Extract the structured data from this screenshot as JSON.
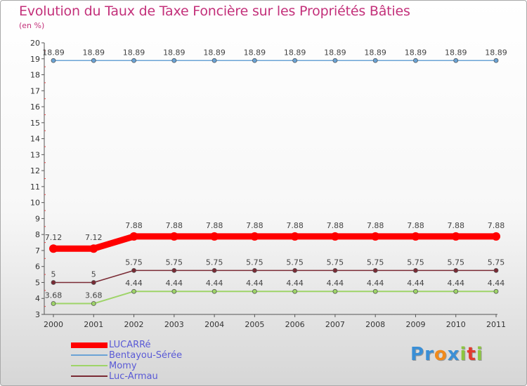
{
  "chart_data": {
    "type": "line",
    "title": "Evolution du Taux de Taxe Foncière sur les Propriétés Bâties",
    "ylabel": "(en %)",
    "xlabel": "",
    "x": [
      "2000",
      "2001",
      "2002",
      "2003",
      "2004",
      "2005",
      "2006",
      "2007",
      "2008",
      "2009",
      "2010",
      "2011"
    ],
    "ylim": [
      3,
      20
    ],
    "yticks": [
      "3",
      "4",
      "5",
      "6",
      "7",
      "8",
      "9",
      "10",
      "11",
      "12",
      "13",
      "14",
      "15",
      "16",
      "17",
      "18",
      "19",
      "20"
    ],
    "grid": false,
    "legend_position": "bottom-left",
    "series": [
      {
        "name": "Bentayou-Sérée",
        "color": "#6aa3d5",
        "values": [
          18.89,
          18.89,
          18.89,
          18.89,
          18.89,
          18.89,
          18.89,
          18.89,
          18.89,
          18.89,
          18.89,
          18.89
        ],
        "labels": [
          "18.89",
          "18.89",
          "18.89",
          "18.89",
          "18.89",
          "18.89",
          "18.89",
          "18.89",
          "18.89",
          "18.89",
          "18.89",
          "18.89"
        ]
      },
      {
        "name": "LUCARRé",
        "color": "#ff0000",
        "values": [
          7.12,
          7.12,
          7.88,
          7.88,
          7.88,
          7.88,
          7.88,
          7.88,
          7.88,
          7.88,
          7.88,
          7.88
        ],
        "labels": [
          "7.12",
          "7.12",
          "7.88",
          "7.88",
          "7.88",
          "7.88",
          "7.88",
          "7.88",
          "7.88",
          "7.88",
          "7.88",
          "7.88"
        ]
      },
      {
        "name": "Luc-Armau",
        "color": "#7a2a34",
        "values": [
          5,
          5,
          5.75,
          5.75,
          5.75,
          5.75,
          5.75,
          5.75,
          5.75,
          5.75,
          5.75,
          5.75
        ],
        "labels": [
          "5",
          "5",
          "5.75",
          "5.75",
          "5.75",
          "5.75",
          "5.75",
          "5.75",
          "5.75",
          "5.75",
          "5.75",
          "5.75"
        ]
      },
      {
        "name": "Momy",
        "color": "#9ed468",
        "values": [
          3.68,
          3.68,
          4.44,
          4.44,
          4.44,
          4.44,
          4.44,
          4.44,
          4.44,
          4.44,
          4.44,
          4.44
        ],
        "labels": [
          "3.68",
          "3.68",
          "4.44",
          "4.44",
          "4.44",
          "4.44",
          "4.44",
          "4.44",
          "4.44",
          "4.44",
          "4.44",
          "4.44"
        ]
      }
    ],
    "legend": [
      {
        "name": "LUCARRé",
        "color": "#ff0000"
      },
      {
        "name": "Bentayou-Sérée",
        "color": "#6aa3d5"
      },
      {
        "name": "Momy",
        "color": "#9ed468"
      },
      {
        "name": "Luc-Armau",
        "color": "#7a2a34"
      }
    ]
  },
  "logo": {
    "letters": [
      "P",
      "r",
      "o",
      "x",
      "i",
      "t",
      "i"
    ],
    "colors": [
      "#3a8fd6",
      "#3a8fd6",
      "#f08a1c",
      "#3a8fd6",
      "#8cc63f",
      "#e23a2e",
      "#8cc63f"
    ]
  }
}
